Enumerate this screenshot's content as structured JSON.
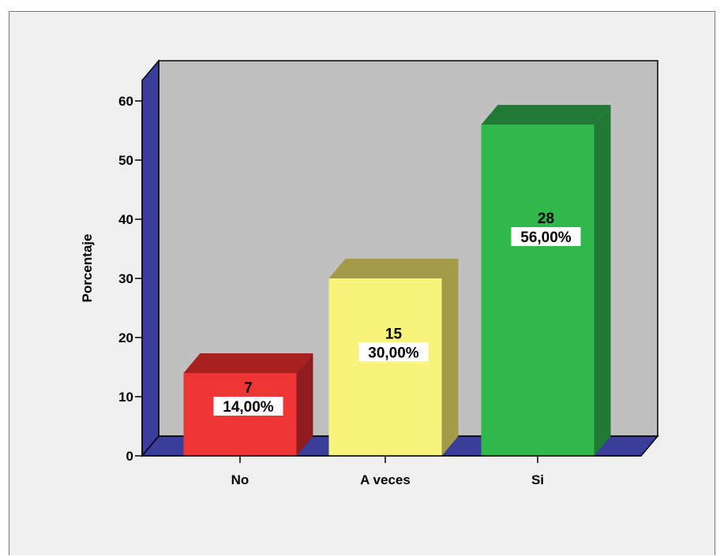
{
  "chart_data": {
    "type": "bar",
    "style": "3d",
    "categories": [
      "No",
      "A veces",
      "Si"
    ],
    "values": [
      14,
      30,
      56
    ],
    "data_labels": [
      {
        "count": "7",
        "percent": "14,00%"
      },
      {
        "count": "15",
        "percent": "30,00%"
      },
      {
        "count": "28",
        "percent": "56,00%"
      }
    ],
    "title": "",
    "xlabel": "",
    "ylabel": "Porcentaje",
    "ylim": [
      0,
      60
    ],
    "yticks": [
      0,
      10,
      20,
      30,
      40,
      50,
      60
    ],
    "grid": false,
    "legend": "none",
    "colors": {
      "bars": [
        "#ef3535",
        "#f8f37b",
        "#30b84a"
      ],
      "bars_top": [
        "#a81f22",
        "#a39a49",
        "#217a34"
      ],
      "bars_side": [
        "#8f1c1f",
        "#a39a49",
        "#217a34"
      ],
      "plot_wall": "#c0c0c0",
      "plot_side": "#3a3d9c",
      "background": "#f0f0f0"
    }
  }
}
